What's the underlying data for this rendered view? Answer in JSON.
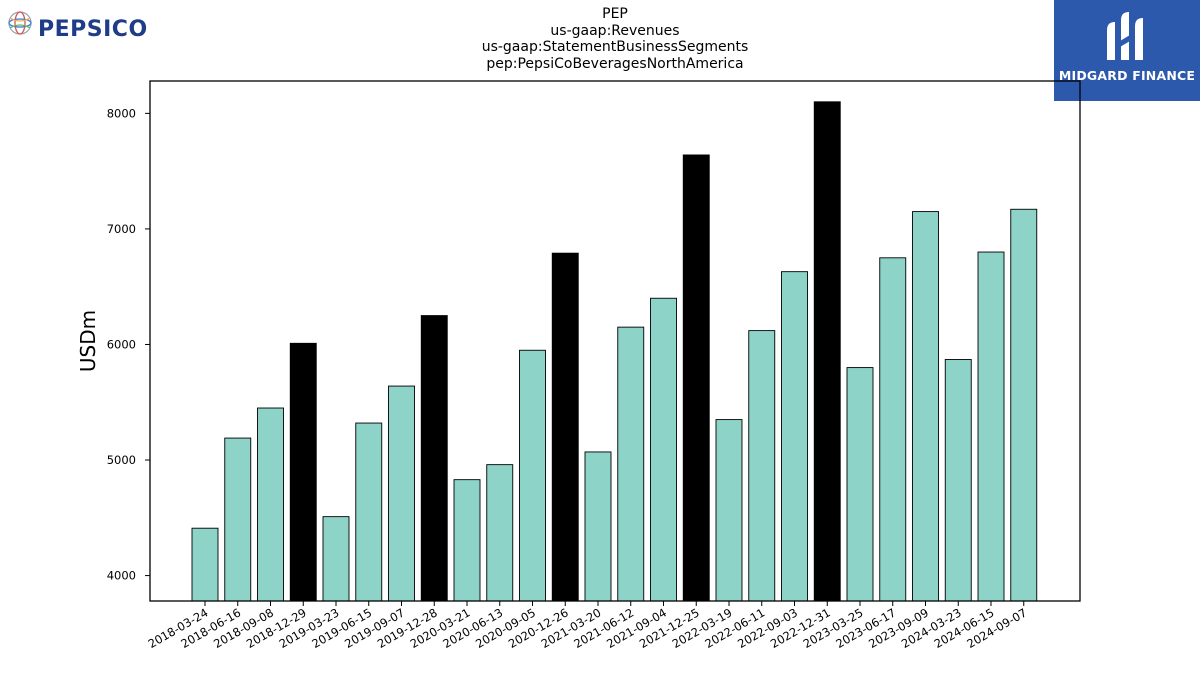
{
  "header": {
    "title_lines": [
      "PEP",
      "us-gaap:Revenues",
      "us-gaap:StatementBusinessSegments",
      "pep:PepsiCoBeveragesNorthAmerica"
    ]
  },
  "logos": {
    "left": {
      "text": "PEPSICO",
      "color": "#1f3c88",
      "icon": "pepsico-globe-icon"
    },
    "right": {
      "text": "MIDGARD FINANCE",
      "background": "#2d59ad",
      "icon": "midgard-monogram-icon"
    }
  },
  "chart_data": {
    "type": "bar",
    "title": "PEP us-gaap:Revenues us-gaap:StatementBusinessSegments pep:PepsiCoBeveragesNorthAmerica",
    "xlabel": "",
    "ylabel": "USDm",
    "ylim": [
      3780,
      8280
    ],
    "yticks": [
      4000,
      5000,
      6000,
      7000,
      8000
    ],
    "grid": false,
    "colors": {
      "quarter": "#8dd3c7",
      "annual": "#000000",
      "edge": "#000000"
    },
    "categories": [
      "2018-03-24",
      "2018-06-16",
      "2018-09-08",
      "2018-12-29",
      "2019-03-23",
      "2019-06-15",
      "2019-09-07",
      "2019-12-28",
      "2020-03-21",
      "2020-06-13",
      "2020-09-05",
      "2020-12-26",
      "2021-03-20",
      "2021-06-12",
      "2021-09-04",
      "2021-12-25",
      "2022-03-19",
      "2022-06-11",
      "2022-09-03",
      "2022-12-31",
      "2023-03-25",
      "2023-06-17",
      "2023-09-09",
      "2024-03-23",
      "2024-06-15",
      "2024-09-07"
    ],
    "values": [
      4410,
      5190,
      5450,
      6010,
      4510,
      5320,
      5640,
      6250,
      4830,
      4960,
      5950,
      6790,
      5070,
      6150,
      6400,
      7640,
      5350,
      6120,
      6630,
      8100,
      5800,
      6750,
      7150,
      5870,
      6800,
      7170
    ],
    "highlight": [
      false,
      false,
      false,
      true,
      false,
      false,
      false,
      true,
      false,
      false,
      false,
      true,
      false,
      false,
      false,
      true,
      false,
      false,
      false,
      true,
      false,
      false,
      false,
      false,
      false,
      false
    ]
  }
}
